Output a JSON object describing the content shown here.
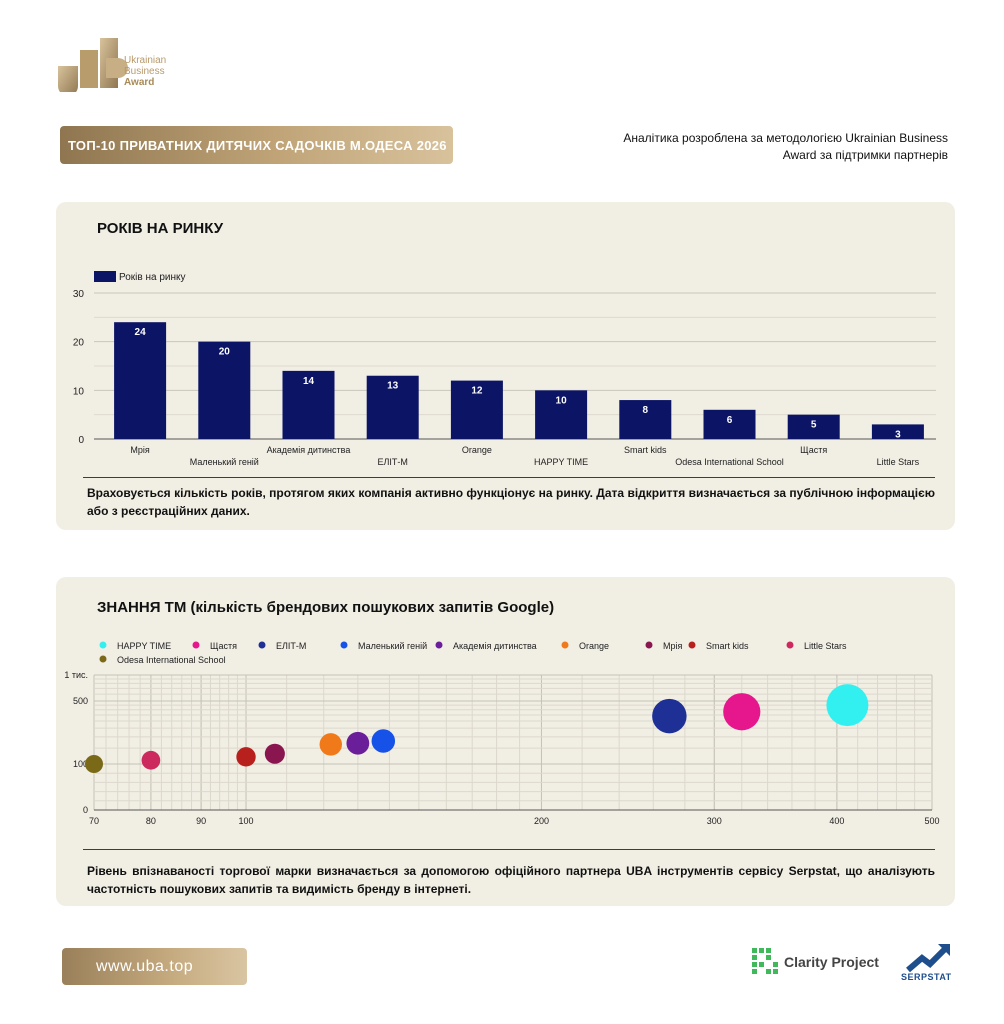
{
  "logo": {
    "line1": "Ukrainian",
    "line2": "Business",
    "line3": "Award"
  },
  "header": {
    "title": "ТОП-10 ПРИВАТНИХ ДИТЯЧИХ САДОЧКІВ М.ОДЕСА 2026",
    "note": "Аналітика розроблена за методологією Ukrainian Business Award за підтримки партнерів"
  },
  "colors": {
    "gold": "#c0a478",
    "navy": "#0c1466",
    "card_bg": "#f1eee4"
  },
  "section1": {
    "title": "РОКІВ НА РИНКУ",
    "note": "Враховується кількість років, протягом яких компанія активно функціонує на ринку. Дата відкриття визначається за публічною інформацією або з реєстраційних даних."
  },
  "section2": {
    "title": "ЗНАННЯ ТМ (кількість брендових пошукових запитів Google)",
    "note": "Рівень впізнаваності торгової марки визначається за допомогою офіційного партнера UBA інструментів сервісу Serpstat, що аналізують частотність пошукових запитів та видимість бренду в інтернеті."
  },
  "chart_data": [
    {
      "type": "bar",
      "title": "РОКІВ НА РИНКУ",
      "categories": [
        "Мрія",
        "Маленький геній",
        "Академія дитинства",
        "ЕЛІТ-М",
        "Orange",
        "HAPPY TIME",
        "Smart kids",
        "Odesa International School",
        "Щастя",
        "Little Stars"
      ],
      "series": [
        {
          "name": "Років на ринку",
          "values": [
            24,
            20,
            14,
            13,
            12,
            10,
            8,
            6,
            5,
            3
          ],
          "color": "#0c1466"
        }
      ],
      "ylim": [
        0,
        30
      ],
      "yticks": [
        0,
        10,
        20,
        30
      ],
      "grid": true,
      "legend": "top-left",
      "data_labels": true
    },
    {
      "type": "scatter",
      "title": "ЗНАННЯ ТМ (кількість брендових пошукових запитів Google)",
      "x_scale": "log",
      "y_scale": "log",
      "xlim": [
        70,
        500
      ],
      "xticks": [
        70,
        80,
        90,
        100,
        200,
        300,
        400,
        500
      ],
      "yticks": [
        0,
        100,
        500,
        1000
      ],
      "ytick_labels": [
        "0",
        "100",
        "500",
        "1 тис."
      ],
      "legend": "top",
      "grid": true,
      "series": [
        {
          "name": "HAPPY TIME",
          "x": 410,
          "y": 450,
          "color": "#33f0f0"
        },
        {
          "name": "Щастя",
          "x": 320,
          "y": 380,
          "color": "#e6168c"
        },
        {
          "name": "ЕЛІТ-М",
          "x": 270,
          "y": 340,
          "color": "#1e2f96"
        },
        {
          "name": "Маленький геній",
          "x": 138,
          "y": 180,
          "color": "#1652e8"
        },
        {
          "name": "Академія дитинства",
          "x": 130,
          "y": 170,
          "color": "#6a1e9a"
        },
        {
          "name": "Orange",
          "x": 122,
          "y": 165,
          "color": "#f07a1a"
        },
        {
          "name": "Мрія",
          "x": 107,
          "y": 130,
          "color": "#8a1650"
        },
        {
          "name": "Smart kids",
          "x": 100,
          "y": 120,
          "color": "#b8201e"
        },
        {
          "name": "Little Stars",
          "x": 80,
          "y": 110,
          "color": "#cc2a5e"
        },
        {
          "name": "Odesa International School",
          "x": 70,
          "y": 100,
          "color": "#7a6a18"
        }
      ]
    }
  ],
  "footer": {
    "url": "www.uba.top",
    "partner1": "Clarity Project",
    "partner2": "SERPSTAT"
  }
}
